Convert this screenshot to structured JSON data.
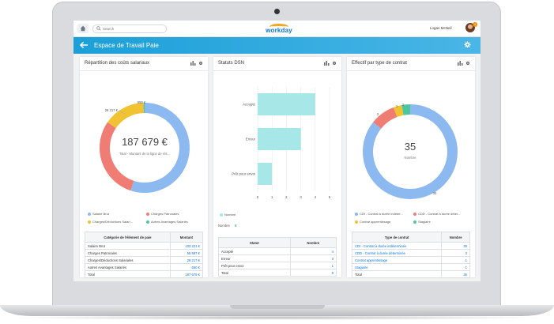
{
  "topbar": {
    "search_placeholder": "Search",
    "logo": "workday",
    "user_name": "Logan McNeil",
    "notification_count": "4"
  },
  "header": {
    "title": "Espace de Travail Paie"
  },
  "cards": {
    "repartition": {
      "title": "Répartition des coûts salariaux",
      "total_value": "187 679 €",
      "total_caption": "Total - Montant de la ligne de rés...",
      "slice_labels": [
        "28 217 €",
        "650 €"
      ],
      "legend": [
        "Salaire Brut",
        "Charges Patronales",
        "Charges/Déductions Salari...",
        "Autres Avantages Salariés"
      ],
      "table": {
        "headers": [
          "Catégorie de l'élément de paie",
          "Montant"
        ],
        "rows": [
          {
            "label": "Salaire Brut",
            "value": "103 221 €"
          },
          {
            "label": "Charges Patronales",
            "value": "55 597 €"
          },
          {
            "label": "Charges/Déductions Salariales",
            "value": "28 217 €"
          },
          {
            "label": "Autres Avantages Salariés",
            "value": "650 €"
          },
          {
            "label": "Total",
            "value": "187 679 €"
          }
        ]
      }
    },
    "statuts": {
      "title": "Statuts DSN",
      "legend": "Nombre",
      "count_label": "Nombre",
      "count_value": "8",
      "table": {
        "headers": [
          "Statut",
          "Nombre"
        ],
        "rows": [
          {
            "label": "Accepté",
            "value": "4"
          },
          {
            "label": "Erreur",
            "value": "3"
          },
          {
            "label": "Prêt pour envoi",
            "value": "1"
          },
          {
            "label": "Total",
            "value": "8"
          }
        ]
      }
    },
    "effectif": {
      "title": "Effectif par type de contrat",
      "total_value": "35",
      "total_caption": "Nombre",
      "slice_labels": [
        "3",
        "1",
        "1",
        "30"
      ],
      "legend": [
        "CDI - Contrat à durée indéter...",
        "CDD - Contrat à durée déter...",
        "Contrat apprentissage",
        "Stagiaire"
      ],
      "table": {
        "headers": [
          "Type de contrat",
          "Nombre"
        ],
        "rows": [
          {
            "label": "CDI - Contrat à durée indéterminée",
            "value": "30"
          },
          {
            "label": "CDD - Contrat à durée déterminée",
            "value": "3"
          },
          {
            "label": "Contrat apprentissage",
            "value": "1"
          },
          {
            "label": "Stagiaire",
            "value": "1"
          },
          {
            "label": "Total",
            "value": "35"
          }
        ]
      }
    }
  },
  "chart_data": [
    {
      "type": "pie",
      "title": "Répartition des coûts salariaux",
      "categories": [
        "Salaire Brut",
        "Charges Patronales",
        "Charges/Déductions Salariales",
        "Autres Avantages Salariés"
      ],
      "values": [
        103221,
        55597,
        28217,
        650
      ],
      "colors": [
        "#8cb9f0",
        "#f07d73",
        "#f1c232",
        "#4cc7a0"
      ],
      "legend": "bottom"
    },
    {
      "type": "bar",
      "title": "Statuts DSN",
      "categories": [
        "Accepté",
        "Erreur",
        "Prêt pour envoi"
      ],
      "series": [
        {
          "name": "Nombre",
          "values": [
            4,
            3,
            1
          ]
        }
      ],
      "xlim": [
        0,
        5
      ],
      "ticks": [
        "0",
        "1",
        "2",
        "3",
        "4",
        "5"
      ],
      "grid": true,
      "color": "#a8e7e7",
      "legend": "bottom"
    },
    {
      "type": "pie",
      "title": "Effectif par type de contrat",
      "categories": [
        "CDI - Contrat à durée indéterminée",
        "CDD - Contrat à durée déterminée",
        "Contrat apprentissage",
        "Stagiaire"
      ],
      "values": [
        30,
        3,
        1,
        1
      ],
      "colors": [
        "#8cb9f0",
        "#f07d73",
        "#f1c232",
        "#4cc7a0"
      ],
      "legend": "bottom"
    }
  ]
}
